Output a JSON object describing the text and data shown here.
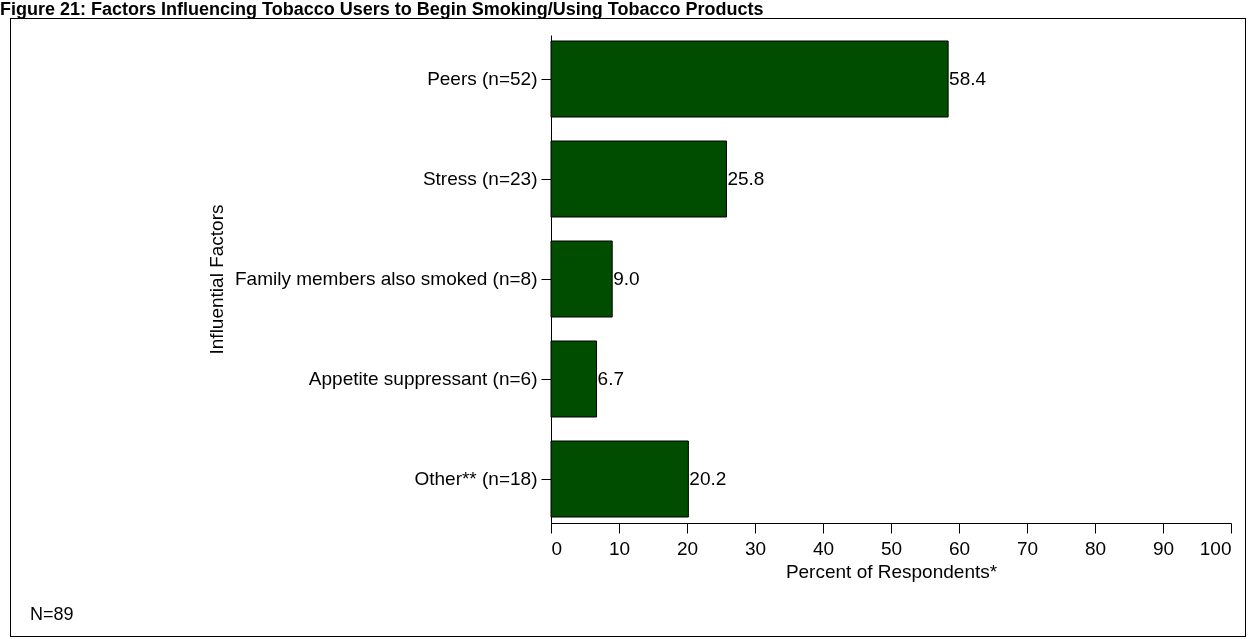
{
  "chart_data": {
    "type": "bar",
    "orientation": "horizontal",
    "title": "Figure 21: Factors Influencing Tobacco Users to Begin Smoking/Using Tobacco Products",
    "xlabel": "Percent of Respondents*",
    "ylabel": "Influential Factors",
    "categories": [
      "Peers (n=52)",
      "Stress (n=23)",
      "Family members also smoked (n=8)",
      "Appetite suppressant (n=6)",
      "Other** (n=18)"
    ],
    "values": [
      58.4,
      25.8,
      9.0,
      6.7,
      20.2
    ],
    "value_labels": [
      "58.4",
      "25.8",
      "9.0",
      "6.7",
      "20.2"
    ],
    "color": "#004d00",
    "xlim": [
      0,
      100
    ],
    "xticks": [
      0,
      10,
      20,
      30,
      40,
      50,
      60,
      70,
      80,
      90,
      100
    ],
    "annotations": [
      "N=89"
    ]
  }
}
